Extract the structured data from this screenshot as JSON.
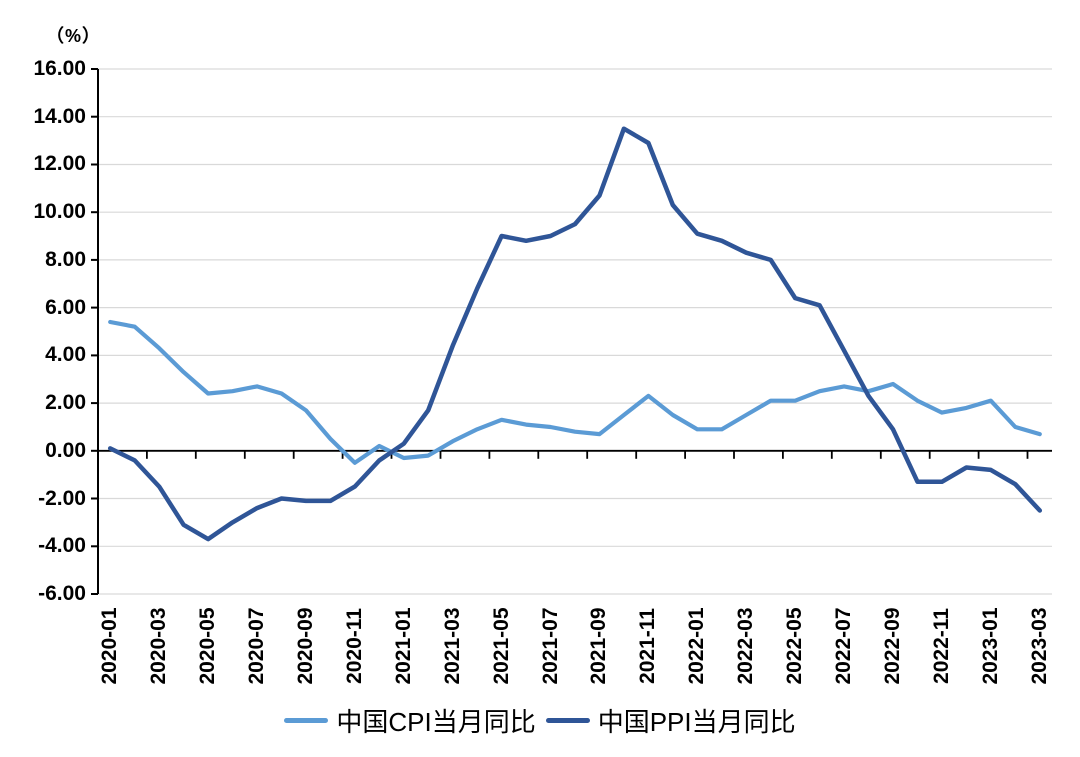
{
  "unit_label": "（%）",
  "chart_data": {
    "type": "line",
    "title": "",
    "xlabel": "",
    "ylabel": "（%）",
    "x": [
      "2020-01",
      "2020-02",
      "2020-03",
      "2020-04",
      "2020-05",
      "2020-06",
      "2020-07",
      "2020-08",
      "2020-09",
      "2020-10",
      "2020-11",
      "2020-12",
      "2021-01",
      "2021-02",
      "2021-03",
      "2021-04",
      "2021-05",
      "2021-06",
      "2021-07",
      "2021-08",
      "2021-09",
      "2021-10",
      "2021-11",
      "2021-12",
      "2022-01",
      "2022-02",
      "2022-03",
      "2022-04",
      "2022-05",
      "2022-06",
      "2022-07",
      "2022-08",
      "2022-09",
      "2022-10",
      "2022-11",
      "2022-12",
      "2023-01",
      "2023-02",
      "2023-03"
    ],
    "series": [
      {
        "id": "cpi",
        "name": "中国CPI当月同比",
        "color": "#5B9BD5",
        "values": [
          5.4,
          5.2,
          4.3,
          3.3,
          2.4,
          2.5,
          2.7,
          2.4,
          1.7,
          0.5,
          -0.5,
          0.2,
          -0.3,
          -0.2,
          0.4,
          0.9,
          1.3,
          1.1,
          1.0,
          0.8,
          0.7,
          1.5,
          2.3,
          1.5,
          0.9,
          0.9,
          1.5,
          2.1,
          2.1,
          2.5,
          2.7,
          2.5,
          2.8,
          2.1,
          1.6,
          1.8,
          2.1,
          1.0,
          0.7
        ]
      },
      {
        "id": "ppi",
        "name": "中国PPI当月同比",
        "color": "#2F5597",
        "values": [
          0.1,
          -0.4,
          -1.5,
          -3.1,
          -3.7,
          -3.0,
          -2.4,
          -2.0,
          -2.1,
          -2.1,
          -1.5,
          -0.4,
          0.3,
          1.7,
          4.4,
          6.8,
          9.0,
          8.8,
          9.0,
          9.5,
          10.7,
          13.5,
          12.9,
          10.3,
          9.1,
          8.8,
          8.3,
          8.0,
          6.4,
          6.1,
          4.2,
          2.3,
          0.9,
          -1.3,
          -1.3,
          -0.7,
          -0.8,
          -1.4,
          -2.5
        ]
      }
    ],
    "ylim": [
      -6,
      16
    ],
    "ytick_step": 2,
    "ytick_labels": [
      "16.00",
      "14.00",
      "12.00",
      "10.00",
      "8.00",
      "6.00",
      "4.00",
      "2.00",
      "0.00",
      "-2.00",
      "-4.00",
      "-6.00"
    ],
    "xtick_labels": [
      "2020-01",
      "2020-03",
      "2020-05",
      "2020-07",
      "2020-09",
      "2020-11",
      "2021-01",
      "2021-03",
      "2021-05",
      "2021-07",
      "2021-09",
      "2021-11",
      "2022-01",
      "2022-03",
      "2022-05",
      "2022-07",
      "2022-09",
      "2022-11",
      "2023-01",
      "2023-03"
    ],
    "xtick_every": 2,
    "grid": true,
    "gridline_color": "#D9D9D9",
    "axis_color": "#000000",
    "legend_position": "bottom"
  }
}
